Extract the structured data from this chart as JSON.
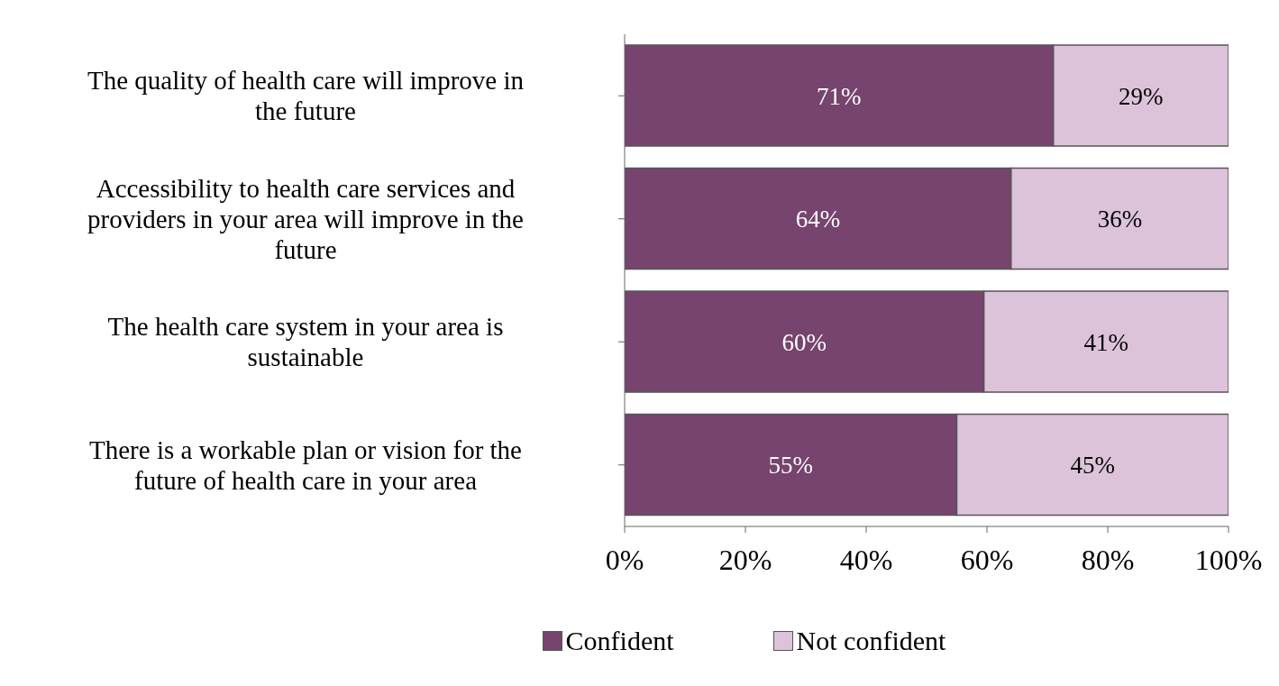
{
  "chart_data": {
    "type": "bar",
    "orientation": "horizontal",
    "stacked": true,
    "categories": [
      "The quality of health care will improve in the future",
      "Accessibility to health care services and providers in your area will improve in the future",
      "The health care system in your area is sustainable",
      "There is a workable plan or vision for the future of health care in your area"
    ],
    "series": [
      {
        "name": "Confident",
        "color": "#76446f",
        "values": [
          71,
          64,
          59.5,
          55
        ],
        "value_labels": [
          "71%",
          "64%",
          "60%",
          "55%"
        ]
      },
      {
        "name": "Not confident",
        "color": "#dcc3da",
        "values": [
          29,
          36,
          40.5,
          45
        ],
        "value_labels": [
          "29%",
          "36%",
          "41%",
          "45%"
        ]
      }
    ],
    "xlim": [
      0,
      100
    ],
    "xticks": [
      {
        "value": 0,
        "label": "0%"
      },
      {
        "value": 20,
        "label": "20%"
      },
      {
        "value": 40,
        "label": "40%"
      },
      {
        "value": 60,
        "label": "60%"
      },
      {
        "value": 80,
        "label": "80%"
      },
      {
        "value": 100,
        "label": "100%"
      }
    ],
    "grid": false,
    "legend": "bottom"
  }
}
